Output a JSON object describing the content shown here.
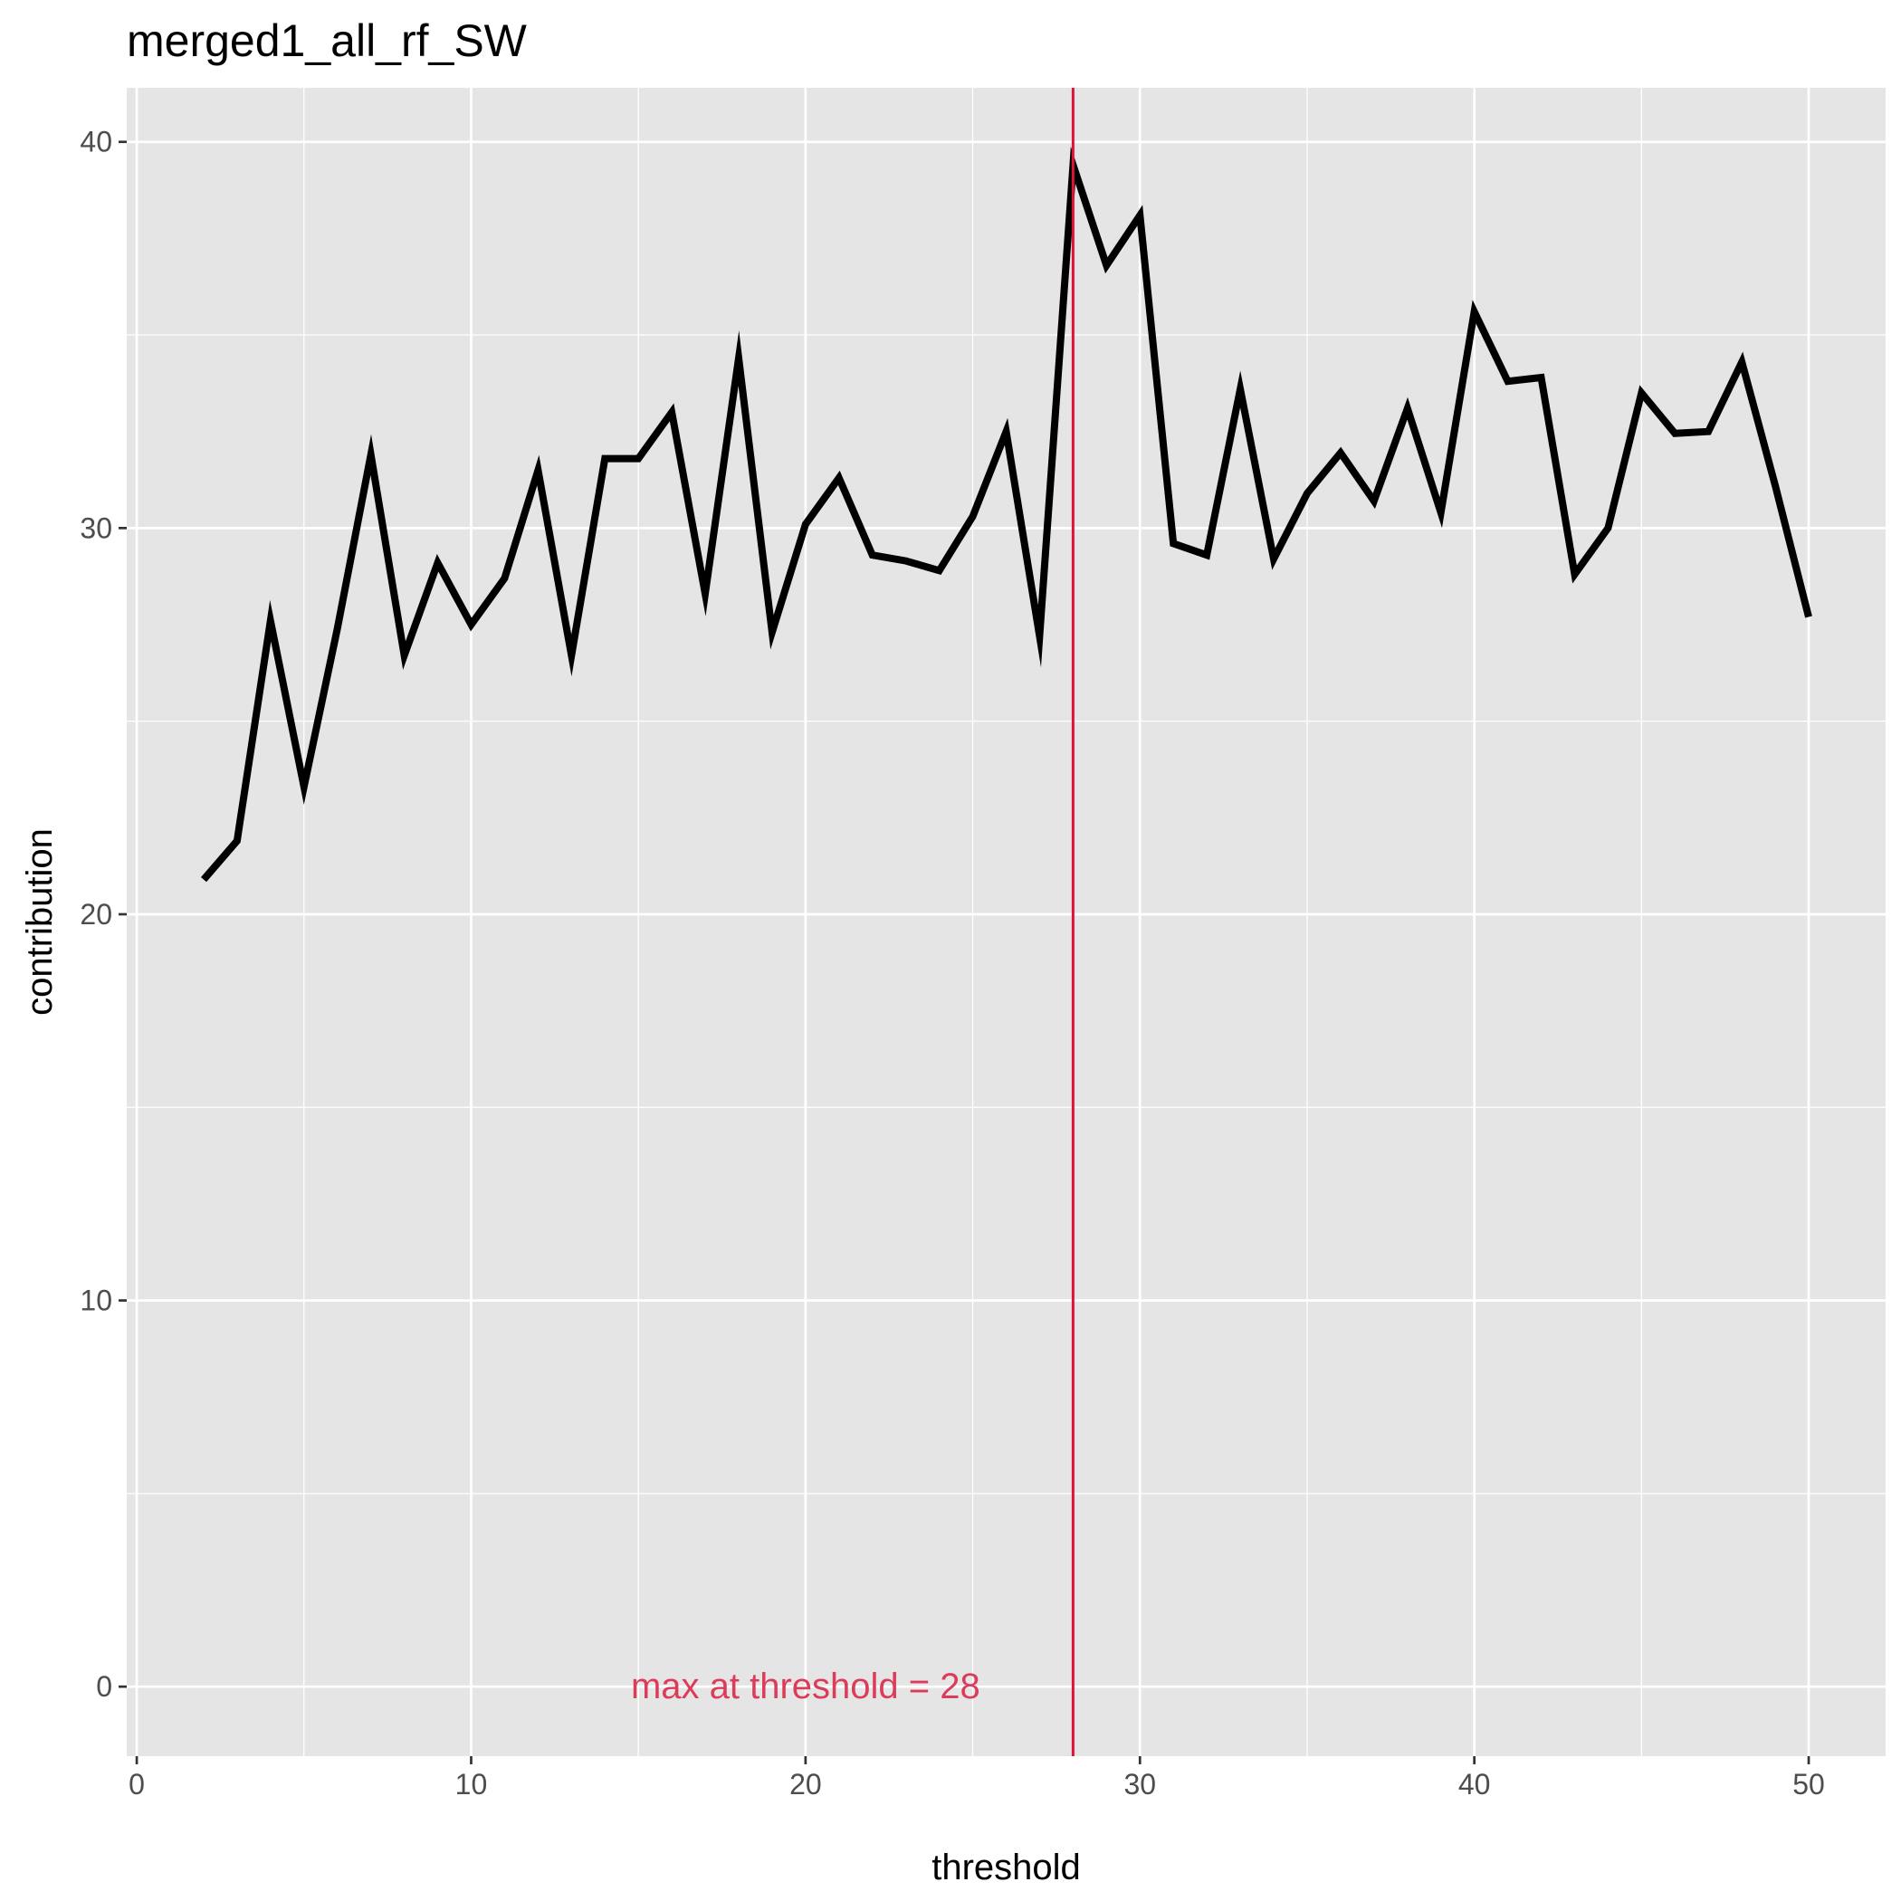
{
  "chart_data": {
    "type": "line",
    "title": "merged1_all_rf_SW",
    "xlabel": "threshold",
    "ylabel": "contribution",
    "xlim": [
      -0.3,
      52.3
    ],
    "ylim": [
      -1.8,
      41.4
    ],
    "x_ticks": [
      0,
      10,
      20,
      30,
      40,
      50
    ],
    "y_ticks": [
      0,
      10,
      20,
      30,
      40
    ],
    "x_minor_ticks": [
      5,
      15,
      25,
      35,
      45
    ],
    "y_minor_ticks": [
      5,
      15,
      25,
      35
    ],
    "x_tick_labels": [
      "0",
      "10",
      "20",
      "30",
      "40",
      "50"
    ],
    "y_tick_labels": [
      "0",
      "10",
      "20",
      "30",
      "40"
    ],
    "grid": true,
    "panel_background": "#e5e5e5",
    "grid_color": "#ffffff",
    "series": [
      {
        "color": "#000000",
        "x": [
          2,
          3,
          4,
          5,
          6,
          7,
          8,
          9,
          10,
          11,
          12,
          13,
          14,
          15,
          16,
          17,
          18,
          19,
          20,
          21,
          22,
          23,
          24,
          25,
          26,
          27,
          28,
          29,
          30,
          31,
          32,
          33,
          34,
          35,
          36,
          37,
          38,
          39,
          40,
          41,
          42,
          43,
          44,
          45,
          46,
          47,
          48,
          49,
          50
        ],
        "y": [
          20.9,
          21.9,
          27.6,
          23.3,
          27.4,
          31.9,
          26.7,
          29.1,
          27.5,
          28.7,
          31.5,
          26.7,
          31.8,
          31.8,
          33.0,
          28.3,
          34.4,
          27.3,
          30.1,
          31.3,
          29.3,
          29.15,
          28.9,
          30.3,
          32.5,
          27.2,
          39.4,
          36.8,
          38.1,
          29.6,
          29.3,
          33.6,
          29.2,
          30.9,
          31.95,
          30.7,
          33.1,
          30.4,
          35.6,
          33.8,
          33.9,
          28.8,
          30.0,
          33.5,
          32.45,
          32.5,
          34.3,
          31.1,
          27.7
        ]
      }
    ],
    "vline": {
      "x": 28,
      "color": "#dc143c"
    },
    "annotation": {
      "text": "max at threshold =  28",
      "x": 20,
      "y": 0,
      "color": "#dc3c5a"
    }
  }
}
